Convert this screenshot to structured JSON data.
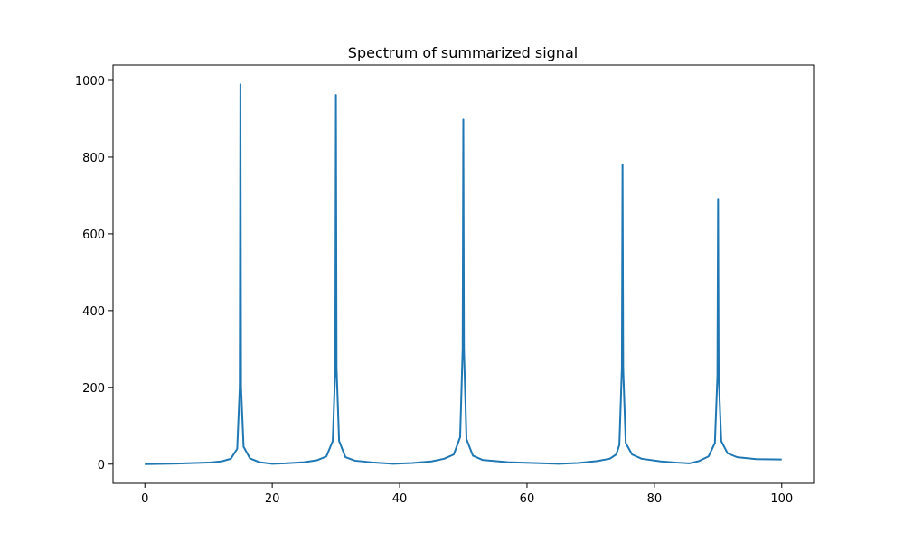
{
  "chart_data": {
    "type": "line",
    "title": "Spectrum of summarized signal",
    "xlabel": "",
    "ylabel": "",
    "xlim": [
      -5,
      105
    ],
    "ylim": [
      -50,
      1040
    ],
    "xticks": [
      0,
      20,
      40,
      60,
      80,
      100
    ],
    "yticks": [
      0,
      200,
      400,
      600,
      800,
      1000
    ],
    "grid": false,
    "legend": "none",
    "series": [
      {
        "color": "#1f77b4",
        "x": [
          0,
          5,
          10,
          12,
          13.5,
          14.5,
          14.9,
          15,
          15.1,
          15.5,
          16.5,
          18,
          20,
          22,
          25,
          27,
          28.5,
          29.5,
          29.9,
          30,
          30.1,
          30.5,
          31.5,
          33,
          36,
          39,
          42,
          45,
          47,
          48.5,
          49.5,
          49.9,
          50,
          50.1,
          50.5,
          51.5,
          53,
          57,
          61,
          65,
          68,
          71,
          73,
          74,
          74.5,
          74.9,
          75,
          75.1,
          75.5,
          76.5,
          78,
          81,
          83.5,
          85.5,
          87,
          88.5,
          89.5,
          89.9,
          90,
          90.1,
          90.5,
          91.5,
          93,
          96,
          100
        ],
        "y": [
          0,
          1.5,
          4,
          7,
          14,
          40,
          200,
          990,
          200,
          45,
          15,
          5,
          1,
          2,
          5,
          10,
          20,
          60,
          250,
          962,
          250,
          60,
          18,
          9,
          4,
          1,
          3,
          7,
          14,
          25,
          70,
          300,
          898,
          300,
          65,
          22,
          11,
          5,
          3,
          1,
          3,
          8,
          14,
          25,
          50,
          250,
          781,
          250,
          55,
          25,
          14,
          7,
          4,
          2,
          8,
          20,
          55,
          230,
          691,
          230,
          60,
          28,
          18,
          13,
          12
        ]
      }
    ]
  }
}
